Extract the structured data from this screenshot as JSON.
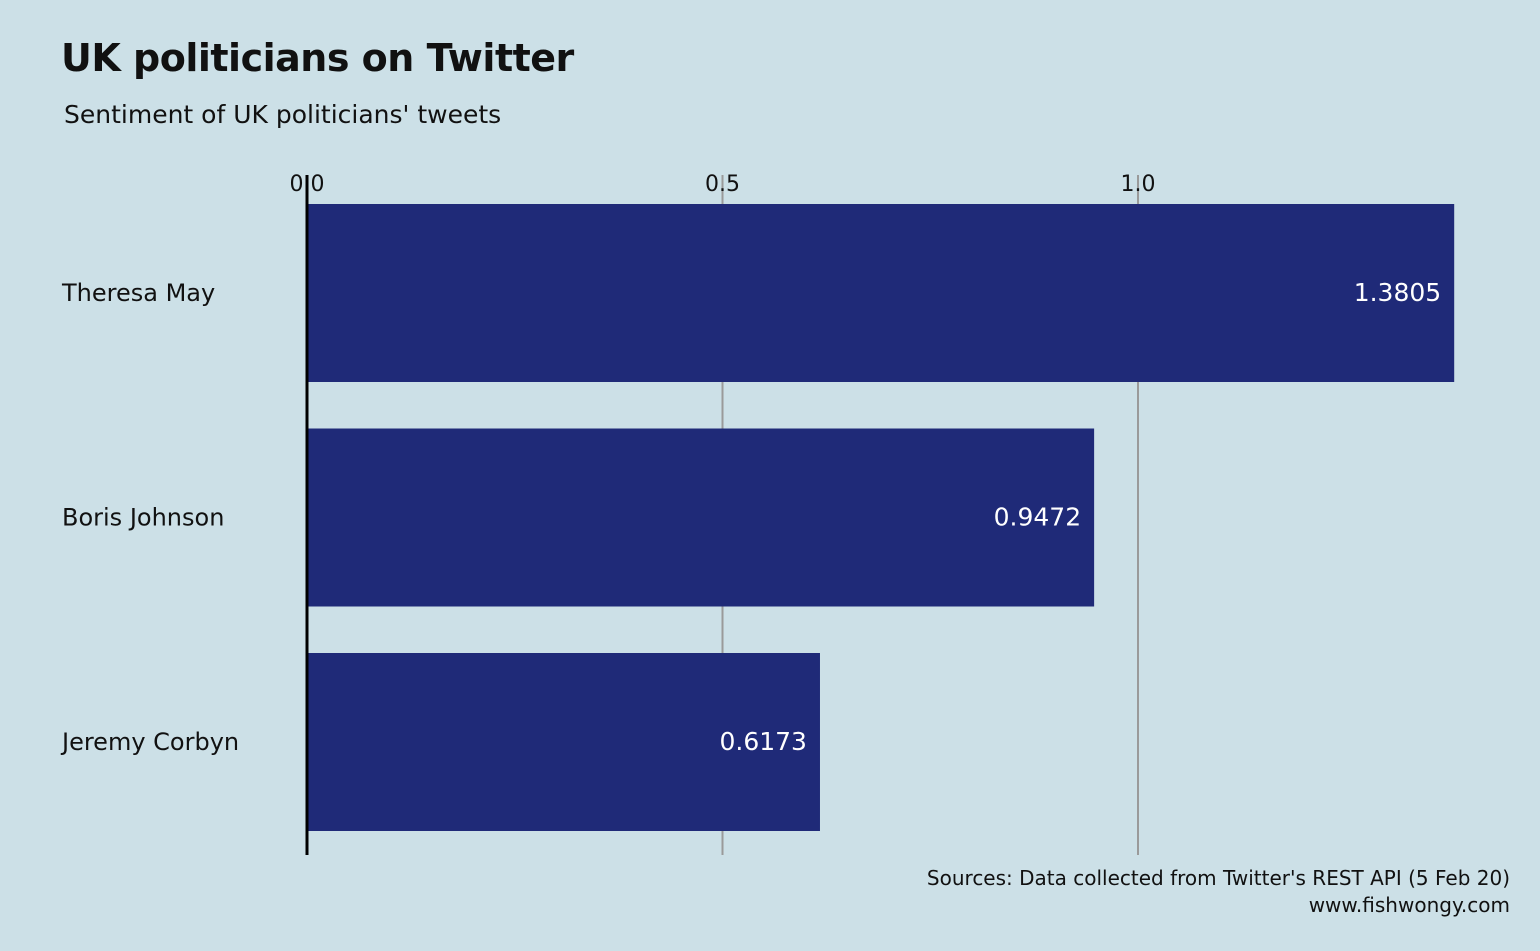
{
  "header": {
    "title": "UK politicians on Twitter",
    "subtitle": "Sentiment of UK politicians' tweets"
  },
  "footer": {
    "source": "Sources: Data collected from Twitter's REST API (5 Feb 20)",
    "site": "www.fishwongy.com"
  },
  "colors": {
    "background": "#cce0e7",
    "bar": "#1f2a78",
    "grid": "#9a9a9a",
    "axis": "#000000",
    "bar_label": "#ffffff"
  },
  "chart_data": {
    "type": "bar",
    "orientation": "horizontal",
    "title": "UK politicians on Twitter",
    "subtitle": "Sentiment of UK politicians' tweets",
    "categories": [
      "Theresa May",
      "Boris Johnson",
      "Jeremy Corbyn"
    ],
    "values": [
      1.3805,
      0.9472,
      0.6173
    ],
    "value_labels": [
      "1.3805",
      "0.9472",
      "0.6173"
    ],
    "xticks": [
      0.0,
      0.5,
      1.0
    ],
    "xtick_labels": [
      "0.0",
      "0.5",
      "1.0"
    ],
    "xlim": [
      0,
      1.4
    ],
    "x_axis_position": "top",
    "grid": true,
    "legend": "none"
  }
}
